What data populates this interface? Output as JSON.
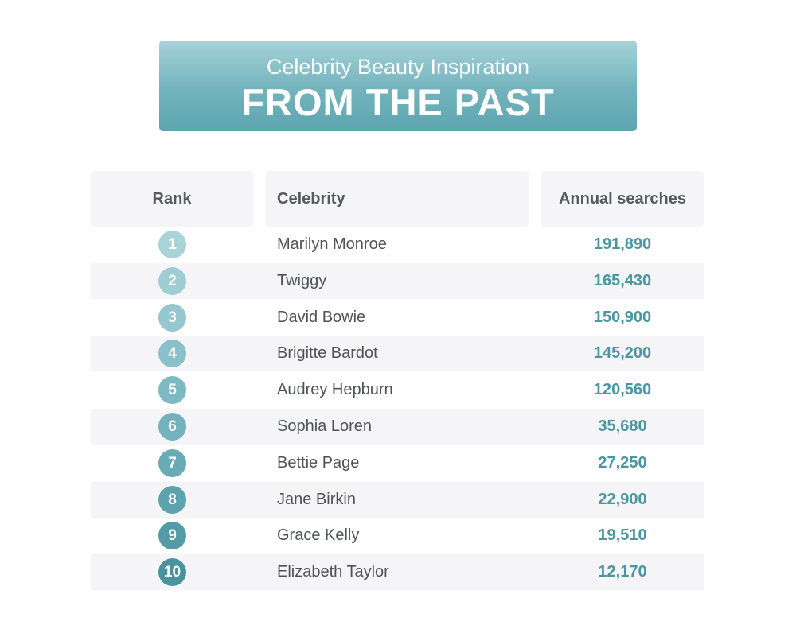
{
  "banner": {
    "subtitle": "Celebrity Beauty Inspiration",
    "title": "FROM THE PAST"
  },
  "colors": {
    "banner_top": "#a6d2d8",
    "banner_bottom": "#5da5af",
    "value_text": "#4a97a2",
    "row_shade": "#f5f5f7"
  },
  "chart_data": {
    "type": "table",
    "columns": [
      "Rank",
      "Celebrity",
      "Annual searches"
    ],
    "rows": [
      {
        "rank": "1",
        "celebrity": "Marilyn Monroe",
        "searches": "191,890",
        "badge_color": "#a9d3d9"
      },
      {
        "rank": "2",
        "celebrity": "Twiggy",
        "searches": "165,430",
        "badge_color": "#9fcdd4"
      },
      {
        "rank": "3",
        "celebrity": "David Bowie",
        "searches": "150,900",
        "badge_color": "#94c7cf"
      },
      {
        "rank": "4",
        "celebrity": "Brigitte Bardot",
        "searches": "145,200",
        "badge_color": "#89c0c9"
      },
      {
        "rank": "5",
        "celebrity": "Audrey Hepburn",
        "searches": "120,560",
        "badge_color": "#7eb9c3"
      },
      {
        "rank": "6",
        "celebrity": "Sophia Loren",
        "searches": "35,680",
        "badge_color": "#73b2bc"
      },
      {
        "rank": "7",
        "celebrity": "Bettie Page",
        "searches": "27,250",
        "badge_color": "#68aab5"
      },
      {
        "rank": "8",
        "celebrity": "Jane Birkin",
        "searches": "22,900",
        "badge_color": "#5ea2ae"
      },
      {
        "rank": "9",
        "celebrity": "Grace Kelly",
        "searches": "19,510",
        "badge_color": "#549aa7"
      },
      {
        "rank": "10",
        "celebrity": "Elizabeth Taylor",
        "searches": "12,170",
        "badge_color": "#4b929f"
      }
    ]
  }
}
